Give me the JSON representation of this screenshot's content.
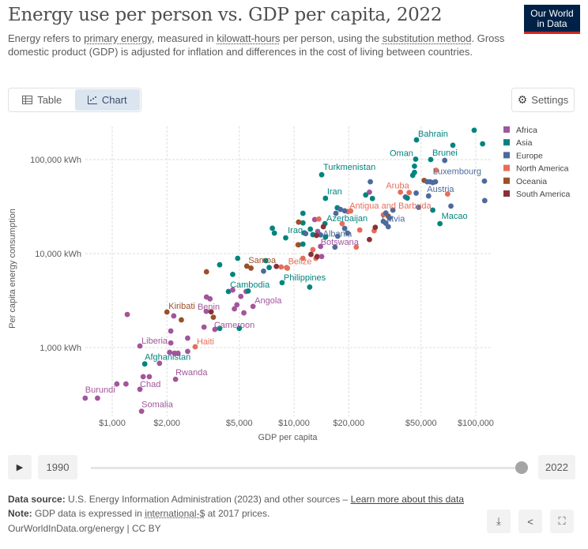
{
  "header": {
    "title": "Energy use per person vs. GDP per capita, 2022",
    "logo": "Our World in Data",
    "logo_line1": "Our World",
    "logo_line2": "in Data",
    "subtitle_parts": [
      "Energy refers to ",
      "primary energy",
      ", measured in ",
      "kilowatt-hours",
      " per person, using the ",
      "substitution method",
      ". Gross domestic product (GDP) is adjusted for inflation and differences in the cost of living between countries."
    ]
  },
  "tabs": [
    {
      "label": "Table",
      "icon": "table-icon"
    },
    {
      "label": "Chart",
      "icon": "chart-icon",
      "active": true
    }
  ],
  "settings_label": "Settings",
  "chart_data": {
    "type": "scatter",
    "title": "Energy use per person vs. GDP per capita, 2022",
    "xlabel": "GDP per capita",
    "ylabel": "Per capita energy consumption",
    "xscale": "log",
    "yscale": "log",
    "xlim": [
      680,
      125000
    ],
    "ylim": [
      170,
      230000
    ],
    "xticks": [
      {
        "v": 1000,
        "label": "$1,000"
      },
      {
        "v": 2000,
        "label": "$2,000"
      },
      {
        "v": 5000,
        "label": "$5,000"
      },
      {
        "v": 10000,
        "label": "$10,000"
      },
      {
        "v": 20000,
        "label": "$20,000"
      },
      {
        "v": 50000,
        "label": "$50,000"
      },
      {
        "v": 100000,
        "label": "$100,000"
      }
    ],
    "yticks": [
      {
        "v": 1000,
        "label": "1,000 kWh"
      },
      {
        "v": 10000,
        "label": "10,000 kWh"
      },
      {
        "v": 100000,
        "label": "100,000 kWh"
      }
    ],
    "grid": true,
    "legend_position": "right",
    "regions": [
      {
        "name": "Africa",
        "color": "#a2559c"
      },
      {
        "name": "Asia",
        "color": "#00847e"
      },
      {
        "name": "Europe",
        "color": "#4c6a9c"
      },
      {
        "name": "North America",
        "color": "#e56e5a"
      },
      {
        "name": "Oceania",
        "color": "#9a5129"
      },
      {
        "name": "South America",
        "color": "#883039"
      }
    ],
    "points": [
      [
        47200,
        162000,
        1,
        "Bahrain"
      ],
      [
        56500,
        100000,
        1,
        "Brunei"
      ],
      [
        46700,
        101000,
        1,
        "Oman"
      ],
      [
        14200,
        69000,
        1,
        "Turkmenistan"
      ],
      [
        111600,
        59000,
        2,
        "Luxembourg"
      ],
      [
        43000,
        44600,
        3,
        "Aruba"
      ],
      [
        55000,
        41000,
        2,
        "Austria"
      ],
      [
        14900,
        38700,
        1,
        "Iran"
      ],
      [
        19800,
        28000,
        3,
        "Antigua and Barbuda"
      ],
      [
        63500,
        20800,
        1,
        "Macao"
      ],
      [
        31000,
        22000,
        2,
        "Latvia"
      ],
      [
        14800,
        20800,
        1,
        "Azerbaijan"
      ],
      [
        11400,
        16600,
        1,
        "Iraq"
      ],
      [
        14000,
        15800,
        2,
        "Albania"
      ],
      [
        14000,
        11900,
        0,
        "Botswana"
      ],
      [
        5500,
        7350,
        4,
        "Samoa"
      ],
      [
        9100,
        7100,
        3,
        "Belize"
      ],
      [
        8600,
        4900,
        1,
        "Philippines"
      ],
      [
        4360,
        3950,
        1,
        "Cambodia"
      ],
      [
        5950,
        2740,
        0,
        "Angola"
      ],
      [
        2000,
        2390,
        4,
        "Kiribati"
      ],
      [
        3290,
        2430,
        0,
        "Benin"
      ],
      [
        3670,
        1560,
        0,
        "Cameroon"
      ],
      [
        2860,
        1020,
        3,
        "Haiti"
      ],
      [
        1420,
        1040,
        0,
        "Liberia"
      ],
      [
        1510,
        670,
        1,
        "Afghanistan"
      ],
      [
        2230,
        460,
        0,
        "Rwanda"
      ],
      [
        1420,
        360,
        0,
        "Chad"
      ],
      [
        710,
        290,
        0,
        "Burundi"
      ],
      [
        1450,
        210,
        0,
        "Somalia"
      ],
      [
        98000,
        205000,
        1
      ],
      [
        109000,
        147000,
        1
      ],
      [
        74800,
        142000,
        1
      ],
      [
        67500,
        98000,
        2
      ],
      [
        46000,
        85000,
        1
      ],
      [
        46000,
        73000,
        1
      ],
      [
        45000,
        68000,
        1
      ],
      [
        60500,
        77000,
        3
      ],
      [
        52000,
        60000,
        4
      ],
      [
        54000,
        58000,
        2
      ],
      [
        56000,
        58000,
        2
      ],
      [
        60000,
        58000,
        2
      ],
      [
        58000,
        57000,
        2
      ],
      [
        38500,
        45000,
        3
      ],
      [
        47000,
        44000,
        2
      ],
      [
        41000,
        40000,
        2
      ],
      [
        42000,
        39000,
        1
      ],
      [
        70000,
        43000,
        3
      ],
      [
        112000,
        36600,
        2
      ],
      [
        73000,
        32000,
        2
      ],
      [
        58000,
        29000,
        1
      ],
      [
        48500,
        31000,
        2
      ],
      [
        26300,
        58000,
        2
      ],
      [
        26000,
        45000,
        0
      ],
      [
        24800,
        42000,
        1
      ],
      [
        27000,
        38500,
        1
      ],
      [
        17300,
        30700,
        1
      ],
      [
        18000,
        29500,
        2
      ],
      [
        19000,
        28500,
        2
      ],
      [
        17000,
        26800,
        2
      ],
      [
        20500,
        28400,
        3
      ],
      [
        33000,
        25000,
        4
      ],
      [
        31000,
        25800,
        3
      ],
      [
        35000,
        29000,
        2
      ],
      [
        32000,
        27000,
        2
      ],
      [
        33500,
        24000,
        2
      ],
      [
        33000,
        19300,
        2
      ],
      [
        32000,
        21000,
        2
      ],
      [
        27600,
        17500,
        3
      ],
      [
        19000,
        18500,
        2
      ],
      [
        28000,
        19000,
        5
      ],
      [
        23000,
        17800,
        3
      ],
      [
        22000,
        11700,
        3
      ],
      [
        26000,
        14100,
        5
      ],
      [
        16800,
        11700,
        2
      ],
      [
        17400,
        15300,
        2
      ],
      [
        19700,
        16500,
        2
      ],
      [
        18400,
        20800,
        3
      ],
      [
        14900,
        15000,
        1
      ],
      [
        12700,
        15900,
        1
      ],
      [
        12300,
        18200,
        1
      ],
      [
        11600,
        16300,
        2
      ],
      [
        13500,
        17200,
        0
      ],
      [
        13000,
        23000,
        0
      ],
      [
        13700,
        23300,
        3
      ],
      [
        14500,
        19300,
        5
      ],
      [
        13300,
        15600,
        5
      ],
      [
        11200,
        21200,
        1
      ],
      [
        11200,
        26800,
        1
      ],
      [
        10600,
        21600,
        4
      ],
      [
        7600,
        18600,
        1
      ],
      [
        7800,
        16500,
        1
      ],
      [
        9000,
        14700,
        1
      ],
      [
        10500,
        12400,
        3
      ],
      [
        10600,
        12400,
        4
      ],
      [
        11200,
        12600,
        1
      ],
      [
        12700,
        11000,
        3
      ],
      [
        12400,
        9800,
        5
      ],
      [
        13200,
        8900,
        3
      ],
      [
        13400,
        9300,
        5
      ],
      [
        14200,
        9300,
        0
      ],
      [
        11200,
        8900,
        3
      ],
      [
        7000,
        8400,
        1
      ],
      [
        8500,
        7200,
        3
      ],
      [
        9200,
        7000,
        3
      ],
      [
        6800,
        6500,
        2
      ],
      [
        8000,
        7300,
        5
      ],
      [
        5800,
        7000,
        4
      ],
      [
        4600,
        6000,
        1
      ],
      [
        3300,
        6400,
        4
      ],
      [
        3900,
        7600,
        1
      ],
      [
        4900,
        8900,
        1
      ],
      [
        12200,
        4400,
        1
      ],
      [
        7300,
        7100,
        1
      ],
      [
        1210,
        2250,
        0
      ],
      [
        2180,
        2170,
        0
      ],
      [
        2400,
        1970,
        4
      ],
      [
        3300,
        3450,
        0
      ],
      [
        3450,
        3300,
        0
      ],
      [
        4850,
        2850,
        0
      ],
      [
        4700,
        2580,
        0
      ],
      [
        5300,
        2340,
        0
      ],
      [
        5100,
        3500,
        0
      ],
      [
        5450,
        3950,
        0
      ],
      [
        3600,
        2100,
        4
      ],
      [
        3200,
        1650,
        0
      ],
      [
        5000,
        1600,
        1
      ],
      [
        3900,
        1600,
        1
      ],
      [
        2100,
        1500,
        0
      ],
      [
        2600,
        1260,
        0
      ],
      [
        2100,
        1120,
        0
      ],
      [
        2070,
        890,
        0
      ],
      [
        2200,
        870,
        0
      ],
      [
        2300,
        870,
        0
      ],
      [
        2600,
        910,
        0
      ],
      [
        1820,
        680,
        0
      ],
      [
        1480,
        490,
        0
      ],
      [
        1600,
        490,
        0
      ],
      [
        1060,
        410,
        0
      ],
      [
        1190,
        410,
        0
      ],
      [
        830,
        290,
        0
      ],
      [
        3500,
        2400,
        5
      ],
      [
        5600,
        4000,
        1
      ],
      [
        4600,
        4100,
        0
      ]
    ]
  },
  "timeline": {
    "play_icon": "play-icon",
    "start_year": "1990",
    "end_year": "2022",
    "progress": 1.0
  },
  "footer": {
    "source_label": "Data source:",
    "source_text": " U.S. Energy Information Administration (2023) and other sources – ",
    "learn_more": "Learn more about this data",
    "note_label": "Note:",
    "note_text_1": " GDP data is expressed in ",
    "note_link": "international-$",
    "note_text_2": " at 2017 prices.",
    "license": "OurWorldInData.org/energy | CC BY"
  }
}
